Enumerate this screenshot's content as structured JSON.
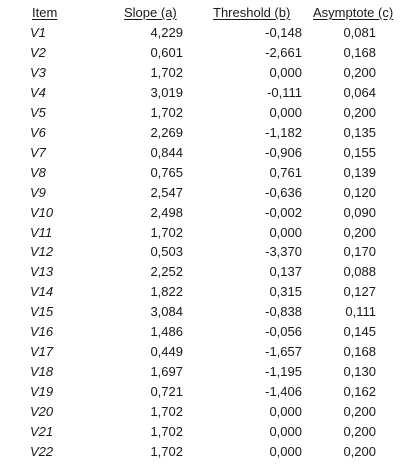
{
  "headers": {
    "item": "Item",
    "slope": "Slope (a)",
    "threshold": "Threshold (b)",
    "asymptote": "Asymptote (c)"
  },
  "rows": [
    {
      "item": "V1",
      "slope": "4,229",
      "threshold": "-0,148",
      "asymptote": "0,081"
    },
    {
      "item": "V2",
      "slope": "0,601",
      "threshold": "-2,661",
      "asymptote": "0,168"
    },
    {
      "item": "V3",
      "slope": "1,702",
      "threshold": "0,000",
      "asymptote": "0,200"
    },
    {
      "item": "V4",
      "slope": "3,019",
      "threshold": "-0,111",
      "asymptote": "0,064"
    },
    {
      "item": "V5",
      "slope": "1,702",
      "threshold": "0,000",
      "asymptote": "0,200"
    },
    {
      "item": "V6",
      "slope": "2,269",
      "threshold": "-1,182",
      "asymptote": "0,135"
    },
    {
      "item": "V7",
      "slope": "0,844",
      "threshold": "-0,906",
      "asymptote": "0,155"
    },
    {
      "item": "V8",
      "slope": "0,765",
      "threshold": "0,761",
      "asymptote": "0,139"
    },
    {
      "item": "V9",
      "slope": "2,547",
      "threshold": "-0,636",
      "asymptote": "0,120"
    },
    {
      "item": "V10",
      "slope": "2,498",
      "threshold": "-0,002",
      "asymptote": "0,090"
    },
    {
      "item": "V11",
      "slope": "1,702",
      "threshold": "0,000",
      "asymptote": "0,200"
    },
    {
      "item": "V12",
      "slope": "0,503",
      "threshold": "-3,370",
      "asymptote": "0,170"
    },
    {
      "item": "V13",
      "slope": "2,252",
      "threshold": "0,137",
      "asymptote": "0,088"
    },
    {
      "item": "V14",
      "slope": "1,822",
      "threshold": "0,315",
      "asymptote": "0,127"
    },
    {
      "item": "V15",
      "slope": "3,084",
      "threshold": "-0,838",
      "asymptote": "0,111"
    },
    {
      "item": "V16",
      "slope": "1,486",
      "threshold": "-0,056",
      "asymptote": "0,145"
    },
    {
      "item": "V17",
      "slope": "0,449",
      "threshold": "-1,657",
      "asymptote": "0,168"
    },
    {
      "item": "V18",
      "slope": "1,697",
      "threshold": "-1,195",
      "asymptote": "0,130"
    },
    {
      "item": "V19",
      "slope": "0,721",
      "threshold": "-1,406",
      "asymptote": "0,162"
    },
    {
      "item": "V20",
      "slope": "1,702",
      "threshold": "0,000",
      "asymptote": "0,200"
    },
    {
      "item": "V21",
      "slope": "1,702",
      "threshold": "0,000",
      "asymptote": "0,200"
    },
    {
      "item": "V22",
      "slope": "1,702",
      "threshold": "0,000",
      "asymptote": "0,200"
    }
  ]
}
